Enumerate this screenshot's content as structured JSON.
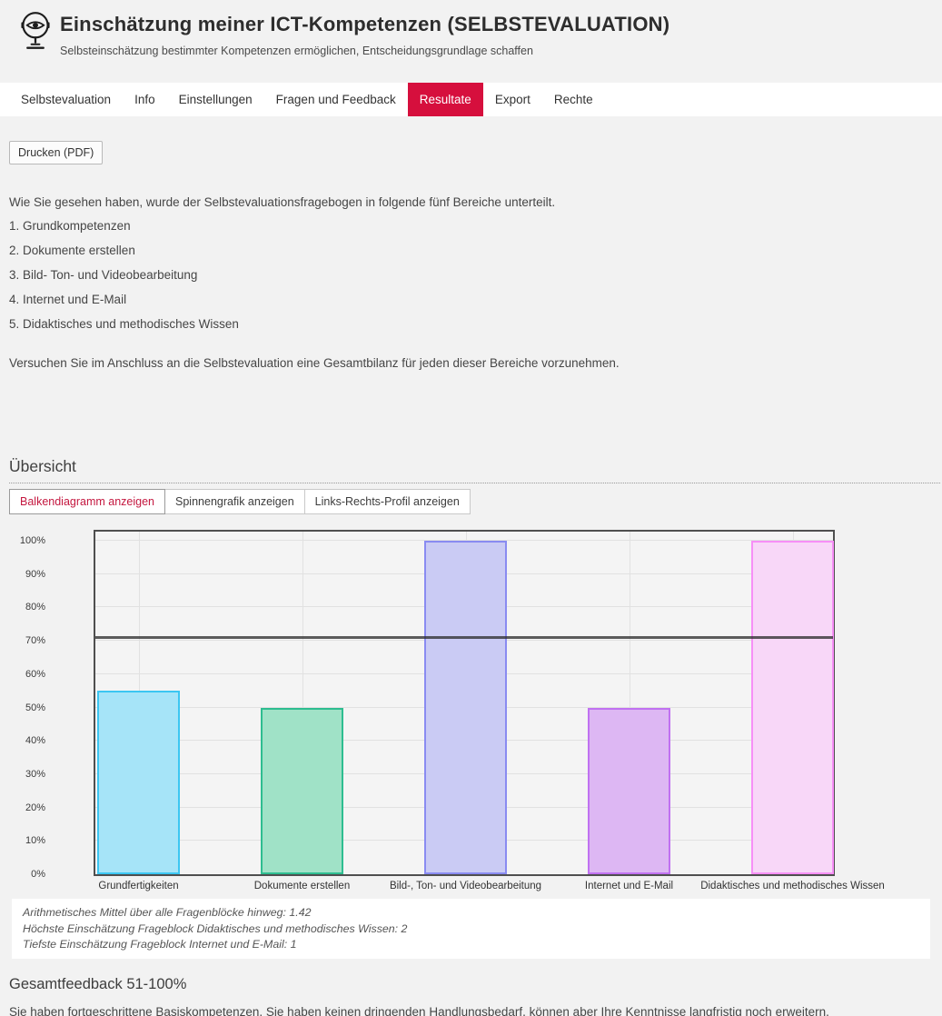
{
  "header": {
    "title": "Einschätzung meiner ICT-Kompetenzen (SELBSTEVALUATION)",
    "subtitle": "Selbsteinschätzung bestimmter Kompetenzen ermöglichen, Entscheidungsgrundlage schaffen",
    "logo_icon": "eye-mirror-icon"
  },
  "nav": {
    "active_color": "#d60f3d",
    "items": [
      {
        "label": "Selbstevaluation",
        "active": false
      },
      {
        "label": "Info",
        "active": false
      },
      {
        "label": "Einstellungen",
        "active": false
      },
      {
        "label": "Fragen und Feedback",
        "active": false
      },
      {
        "label": "Resultate",
        "active": true
      },
      {
        "label": "Export",
        "active": false
      },
      {
        "label": "Rechte",
        "active": false
      }
    ]
  },
  "toolbar": {
    "print_label": "Drucken (PDF)"
  },
  "intro": {
    "lead": "Wie Sie gesehen haben, wurde der Selbstevaluationsfragebogen in folgende fünf Bereiche unterteilt.",
    "list": [
      "1. Grundkompetenzen",
      "2. Dokumente erstellen",
      "3. Bild- Ton- und Videobearbeitung",
      "4. Internet und E-Mail",
      "5. Didaktisches und methodisches Wissen"
    ],
    "outro": "Versuchen Sie im Anschluss an die Selbstevaluation eine Gesamtbilanz für jeden dieser Bereiche vorzunehmen."
  },
  "overview": {
    "heading": "Übersicht",
    "buttons": [
      {
        "label": "Balkendiagramm anzeigen",
        "active": true
      },
      {
        "label": "Spinnengrafik anzeigen",
        "active": false
      },
      {
        "label": "Links-Rechts-Profil anzeigen",
        "active": false
      }
    ]
  },
  "chart_data": {
    "type": "bar",
    "title": "",
    "xlabel": "",
    "ylabel": "",
    "unit": "%",
    "categories": [
      "Grundfertigkeiten",
      "Dokumente erstellen",
      "Bild-, Ton- und Videobearbeitung",
      "Internet und E-Mail",
      "Didaktisches und methodisches Wissen"
    ],
    "values": [
      55,
      50,
      100,
      50,
      100
    ],
    "y_ticks": [
      "0%",
      "10%",
      "20%",
      "30%",
      "40%",
      "50%",
      "60%",
      "70%",
      "80%",
      "90%",
      "100%"
    ],
    "ylim": [
      0,
      103
    ],
    "grid": true,
    "mean_line_pct": 71,
    "bar_colors": [
      {
        "fill": "#a6e4f8",
        "border": "#3cc6f2"
      },
      {
        "fill": "#a0e2c7",
        "border": "#2ebd90"
      },
      {
        "fill": "#cacbf4",
        "border": "#898bf1"
      },
      {
        "fill": "#ddb7f3",
        "border": "#c071f1"
      },
      {
        "fill": "#f8d7f8",
        "border": "#f78ff7"
      }
    ],
    "frame_color": "#4f4f4f"
  },
  "chart_notes": {
    "lines": [
      "Arithmetisches Mittel über alle Fragenblöcke hinweg: 1.42",
      "Höchste Einschätzung Frageblock Didaktisches und methodisches Wissen: 2",
      "Tiefste Einschätzung Frageblock Internet und E-Mail: 1"
    ]
  },
  "feedback": {
    "heading": "Gesamtfeedback 51-100%",
    "text": "Sie haben fortgeschrittene Basiskompetenzen. Sie haben keinen dringenden Handlungsbedarf, können aber Ihre Kenntnisse langfristig noch erweitern."
  }
}
